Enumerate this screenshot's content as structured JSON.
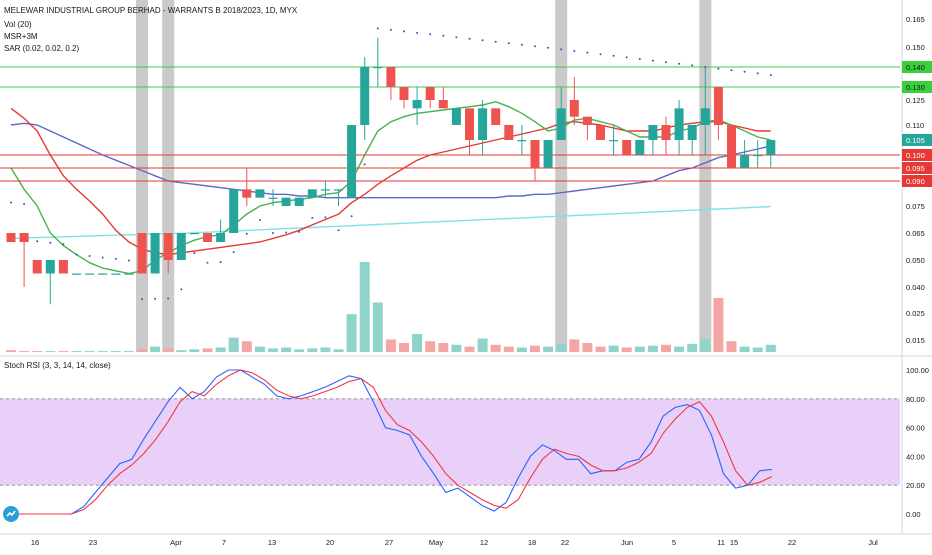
{
  "header": {
    "title": "MELEWAR INDUSTRIAL GROUP BERHAD - WARRANTS B 2018/2023, 1D, MYX",
    "indicators": [
      "Vol (20)",
      "MSR+3M",
      "SAR (0.02, 0.02, 0.2)"
    ]
  },
  "rsi_panel": {
    "title": "Stoch RSI (3, 3, 14, 14, close)"
  },
  "colors": {
    "up": "#26a69a",
    "down": "#ef5350",
    "vol_up": "#8fd3cb",
    "vol_down": "#f4a6a4",
    "ema_short": "#4caf50",
    "ema_mid": "#e53935",
    "ema_long": "#5b6bbf",
    "ema_vlong": "#7fe3e3",
    "sar": "#3f51b5",
    "support_line": "#e53935",
    "resist_line": "#3ccf3c",
    "highlight": "#9e9e9e",
    "rsi_k": "#2962ff",
    "rsi_d": "#f23645",
    "rsi_band": "#e3c4f7"
  },
  "chart_data": {
    "type": "candlestick",
    "price_axis": {
      "ticks": [
        "0.165",
        "0.150",
        "0.140",
        "0.130",
        "0.125",
        "0.110",
        "0.100",
        "0.095",
        "0.090",
        "0.075",
        "0.065",
        "0.050",
        "0.040",
        "0.025",
        "0.015"
      ],
      "ylim": [
        0.015,
        0.165
      ]
    },
    "x_tick_labels": [
      "16",
      "23",
      "Apr",
      "7",
      "13",
      "20",
      "27",
      "May",
      "12",
      "18",
      "22",
      "Jun",
      "5",
      "11",
      "15",
      "22",
      "Jul"
    ],
    "horizontal_lines": [
      {
        "value": 0.14,
        "label": "0.140",
        "kind": "resistance"
      },
      {
        "value": 0.13,
        "label": "0.130",
        "kind": "resistance"
      },
      {
        "value": 0.105,
        "label": "0.105",
        "kind": "last"
      },
      {
        "value": 0.1,
        "label": "0.100",
        "kind": "support"
      },
      {
        "value": 0.095,
        "label": "0.095",
        "kind": "support"
      },
      {
        "value": 0.09,
        "label": "0.090",
        "kind": "support"
      }
    ],
    "candles": [
      {
        "i": 0,
        "o": 0.065,
        "h": 0.065,
        "l": 0.06,
        "c": 0.06
      },
      {
        "i": 1,
        "o": 0.065,
        "h": 0.065,
        "l": 0.04,
        "c": 0.06
      },
      {
        "i": 2,
        "o": 0.05,
        "h": 0.05,
        "l": 0.045,
        "c": 0.045
      },
      {
        "i": 3,
        "o": 0.045,
        "h": 0.05,
        "l": 0.03,
        "c": 0.05
      },
      {
        "i": 4,
        "o": 0.05,
        "h": 0.05,
        "l": 0.045,
        "c": 0.045
      },
      {
        "i": 5,
        "o": 0.045,
        "h": 0.045,
        "l": 0.045,
        "c": 0.045
      },
      {
        "i": 6,
        "o": 0.045,
        "h": 0.045,
        "l": 0.045,
        "c": 0.045
      },
      {
        "i": 7,
        "o": 0.045,
        "h": 0.045,
        "l": 0.045,
        "c": 0.045
      },
      {
        "i": 8,
        "o": 0.045,
        "h": 0.045,
        "l": 0.045,
        "c": 0.045
      },
      {
        "i": 9,
        "o": 0.045,
        "h": 0.045,
        "l": 0.045,
        "c": 0.045
      },
      {
        "i": 10,
        "o": 0.065,
        "h": 0.065,
        "l": 0.045,
        "c": 0.045
      },
      {
        "i": 11,
        "o": 0.045,
        "h": 0.065,
        "l": 0.045,
        "c": 0.065
      },
      {
        "i": 12,
        "o": 0.065,
        "h": 0.065,
        "l": 0.045,
        "c": 0.05
      },
      {
        "i": 13,
        "o": 0.05,
        "h": 0.065,
        "l": 0.05,
        "c": 0.065
      },
      {
        "i": 14,
        "o": 0.065,
        "h": 0.065,
        "l": 0.065,
        "c": 0.065
      },
      {
        "i": 15,
        "o": 0.065,
        "h": 0.065,
        "l": 0.06,
        "c": 0.06
      },
      {
        "i": 16,
        "o": 0.06,
        "h": 0.07,
        "l": 0.06,
        "c": 0.065
      },
      {
        "i": 17,
        "o": 0.065,
        "h": 0.085,
        "l": 0.065,
        "c": 0.085
      },
      {
        "i": 18,
        "o": 0.085,
        "h": 0.095,
        "l": 0.075,
        "c": 0.08
      },
      {
        "i": 19,
        "o": 0.08,
        "h": 0.085,
        "l": 0.08,
        "c": 0.085
      },
      {
        "i": 20,
        "o": 0.08,
        "h": 0.085,
        "l": 0.075,
        "c": 0.08
      },
      {
        "i": 21,
        "o": 0.075,
        "h": 0.08,
        "l": 0.075,
        "c": 0.08
      },
      {
        "i": 22,
        "o": 0.075,
        "h": 0.08,
        "l": 0.075,
        "c": 0.08
      },
      {
        "i": 23,
        "o": 0.08,
        "h": 0.085,
        "l": 0.08,
        "c": 0.085
      },
      {
        "i": 24,
        "o": 0.085,
        "h": 0.09,
        "l": 0.08,
        "c": 0.085
      },
      {
        "i": 25,
        "o": 0.085,
        "h": 0.085,
        "l": 0.075,
        "c": 0.085
      },
      {
        "i": 26,
        "o": 0.08,
        "h": 0.11,
        "l": 0.08,
        "c": 0.11
      },
      {
        "i": 27,
        "o": 0.11,
        "h": 0.145,
        "l": 0.105,
        "c": 0.14
      },
      {
        "i": 28,
        "o": 0.14,
        "h": 0.155,
        "l": 0.13,
        "c": 0.14
      },
      {
        "i": 29,
        "o": 0.14,
        "h": 0.14,
        "l": 0.125,
        "c": 0.13
      },
      {
        "i": 30,
        "o": 0.13,
        "h": 0.13,
        "l": 0.12,
        "c": 0.125
      },
      {
        "i": 31,
        "o": 0.12,
        "h": 0.13,
        "l": 0.11,
        "c": 0.125
      },
      {
        "i": 32,
        "o": 0.13,
        "h": 0.13,
        "l": 0.12,
        "c": 0.125
      },
      {
        "i": 33,
        "o": 0.125,
        "h": 0.13,
        "l": 0.12,
        "c": 0.12
      },
      {
        "i": 34,
        "o": 0.11,
        "h": 0.12,
        "l": 0.11,
        "c": 0.12
      },
      {
        "i": 35,
        "o": 0.12,
        "h": 0.12,
        "l": 0.1,
        "c": 0.105
      },
      {
        "i": 36,
        "o": 0.105,
        "h": 0.125,
        "l": 0.1,
        "c": 0.12
      },
      {
        "i": 37,
        "o": 0.12,
        "h": 0.12,
        "l": 0.11,
        "c": 0.11
      },
      {
        "i": 38,
        "o": 0.11,
        "h": 0.11,
        "l": 0.105,
        "c": 0.105
      },
      {
        "i": 39,
        "o": 0.105,
        "h": 0.11,
        "l": 0.1,
        "c": 0.105
      },
      {
        "i": 40,
        "o": 0.105,
        "h": 0.105,
        "l": 0.09,
        "c": 0.095
      },
      {
        "i": 41,
        "o": 0.095,
        "h": 0.105,
        "l": 0.095,
        "c": 0.105
      },
      {
        "i": 42,
        "o": 0.105,
        "h": 0.13,
        "l": 0.105,
        "c": 0.12
      },
      {
        "i": 43,
        "o": 0.125,
        "h": 0.135,
        "l": 0.11,
        "c": 0.115
      },
      {
        "i": 44,
        "o": 0.115,
        "h": 0.115,
        "l": 0.105,
        "c": 0.11
      },
      {
        "i": 45,
        "o": 0.11,
        "h": 0.11,
        "l": 0.105,
        "c": 0.105
      },
      {
        "i": 46,
        "o": 0.105,
        "h": 0.11,
        "l": 0.1,
        "c": 0.105
      },
      {
        "i": 47,
        "o": 0.105,
        "h": 0.105,
        "l": 0.1,
        "c": 0.1
      },
      {
        "i": 48,
        "o": 0.1,
        "h": 0.105,
        "l": 0.1,
        "c": 0.105
      },
      {
        "i": 49,
        "o": 0.105,
        "h": 0.11,
        "l": 0.1,
        "c": 0.11
      },
      {
        "i": 50,
        "o": 0.11,
        "h": 0.115,
        "l": 0.1,
        "c": 0.105
      },
      {
        "i": 51,
        "o": 0.105,
        "h": 0.125,
        "l": 0.1,
        "c": 0.12
      },
      {
        "i": 52,
        "o": 0.105,
        "h": 0.11,
        "l": 0.1,
        "c": 0.11
      },
      {
        "i": 53,
        "o": 0.11,
        "h": 0.14,
        "l": 0.1,
        "c": 0.12
      },
      {
        "i": 54,
        "o": 0.13,
        "h": 0.13,
        "l": 0.105,
        "c": 0.11
      },
      {
        "i": 55,
        "o": 0.11,
        "h": 0.11,
        "l": 0.095,
        "c": 0.095
      },
      {
        "i": 56,
        "o": 0.095,
        "h": 0.105,
        "l": 0.095,
        "c": 0.1
      },
      {
        "i": 57,
        "o": 0.1,
        "h": 0.105,
        "l": 0.095,
        "c": 0.1
      },
      {
        "i": 58,
        "o": 0.1,
        "h": 0.105,
        "l": 0.095,
        "c": 0.105
      }
    ],
    "highlight_bars": [
      10,
      12,
      42,
      53
    ],
    "rsi_axis": {
      "ticks": [
        "100.00",
        "80.00",
        "60.00",
        "40.00",
        "20.00",
        "0.00"
      ],
      "ylim": [
        -5,
        105
      ],
      "band": [
        20,
        80
      ]
    },
    "rsi_k": [
      0,
      0,
      0,
      0,
      0,
      0,
      5,
      15,
      25,
      35,
      38,
      52,
      65,
      78,
      88,
      80,
      85,
      95,
      100,
      100,
      95,
      90,
      82,
      80,
      82,
      85,
      88,
      92,
      96,
      94,
      78,
      60,
      58,
      55,
      40,
      28,
      15,
      18,
      12,
      6,
      2,
      8,
      25,
      40,
      48,
      44,
      38,
      38,
      28,
      30,
      30,
      36,
      38,
      50,
      68,
      74,
      76,
      72,
      55,
      28,
      18,
      20,
      30,
      31
    ],
    "rsi_d": [
      0,
      0,
      0,
      0,
      0,
      0,
      3,
      10,
      20,
      28,
      34,
      42,
      52,
      64,
      78,
      85,
      82,
      90,
      96,
      100,
      98,
      93,
      86,
      82,
      80,
      82,
      85,
      88,
      92,
      94,
      88,
      72,
      62,
      58,
      50,
      40,
      28,
      20,
      15,
      10,
      6,
      4,
      10,
      25,
      38,
      45,
      42,
      40,
      34,
      30,
      30,
      32,
      36,
      42,
      56,
      66,
      74,
      78,
      68,
      50,
      30,
      20,
      22,
      26
    ]
  }
}
